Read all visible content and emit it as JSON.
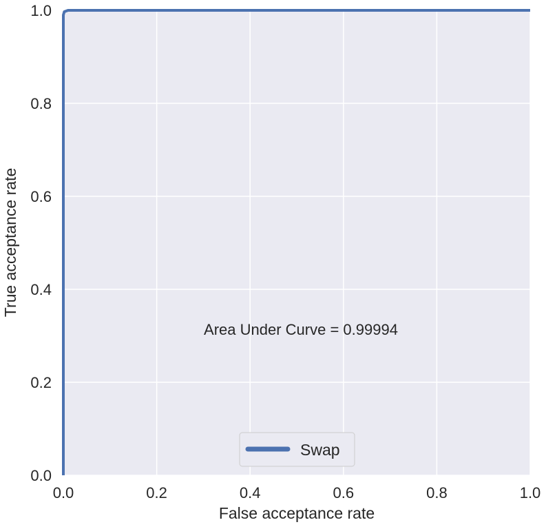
{
  "chart_data": {
    "type": "line",
    "title": "",
    "xlabel": "False acceptance rate",
    "ylabel": "True acceptance rate",
    "xlim": [
      0.0,
      1.0
    ],
    "ylim": [
      0.0,
      1.0
    ],
    "xticks": [
      "0.0",
      "0.2",
      "0.4",
      "0.6",
      "0.8",
      "1.0"
    ],
    "yticks": [
      "0.0",
      "0.2",
      "0.4",
      "0.6",
      "0.8",
      "1.0"
    ],
    "grid": true,
    "legend_placement": "lower-center",
    "annotation": "Area Under Curve = 0.99994",
    "series": [
      {
        "name": "Swap",
        "color": "#4c72b0",
        "x": [
          0.0,
          0.0,
          0.002,
          0.01,
          1.0
        ],
        "y": [
          0.0,
          0.99,
          0.997,
          1.0,
          1.0
        ]
      }
    ],
    "background_color": "#eaeaf2"
  }
}
